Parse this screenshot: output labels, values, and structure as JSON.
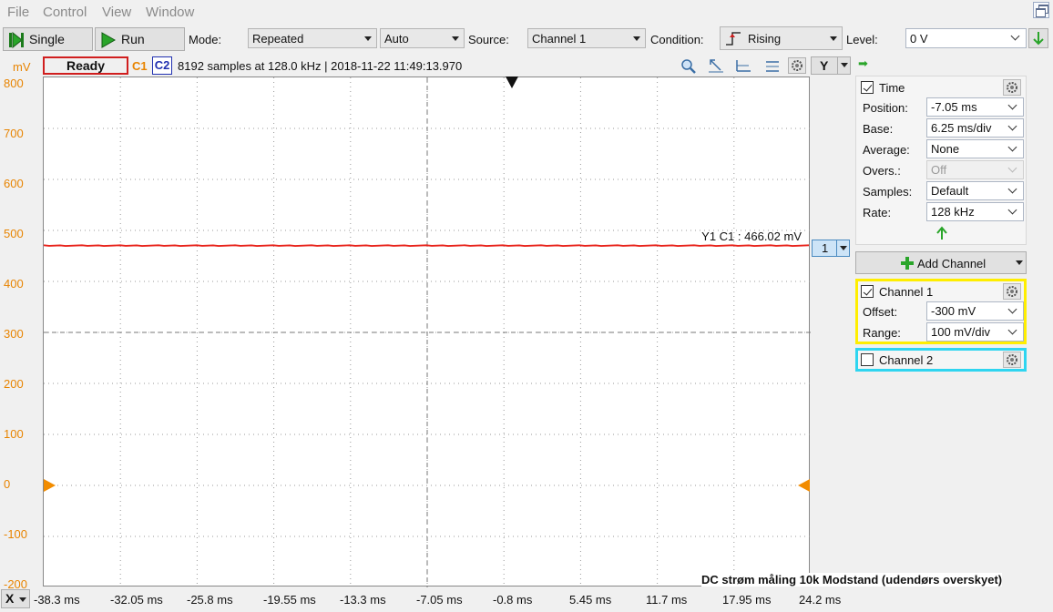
{
  "menu": [
    "File",
    "Control",
    "View",
    "Window"
  ],
  "toolbar": {
    "single_label": "Single",
    "run_label": "Run",
    "mode_label": "Mode:",
    "mode_value": "Repeated",
    "trigger_mode_value": "Auto",
    "source_label": "Source:",
    "source_value": "Channel 1",
    "condition_label": "Condition:",
    "condition_value": "Rising",
    "level_label": "Level:",
    "level_value": "0 V"
  },
  "status": {
    "state": "Ready",
    "c1": "C1",
    "c2": "C2",
    "info": "8192 samples at 128.0 kHz | 2018-11-22 11:49:13.970",
    "y_selector": "Y"
  },
  "plot": {
    "y_unit": "mV",
    "y_ticks": [
      "800",
      "700",
      "600",
      "500",
      "400",
      "300",
      "200",
      "100",
      "0",
      "-100",
      "-200"
    ],
    "x_ticks": [
      "-38.3 ms",
      "-32.05 ms",
      "-25.8 ms",
      "-19.55 ms",
      "-13.3 ms",
      "-7.05 ms",
      "-0.8 ms",
      "5.45 ms",
      "11.7 ms",
      "17.95 ms",
      "24.2 ms"
    ],
    "x_button": "X",
    "y1_readout": "Y1 C1 : 466.02 mV",
    "channel_selector": "1",
    "watermark": "DC strøm måling 10k Modstand (udendørs overskyet)",
    "trace_color": "#e8221a",
    "trace_level_mv": 466.02,
    "y_range": [
      -200,
      800
    ]
  },
  "panel": {
    "time": {
      "title": "Time",
      "position_label": "Position:",
      "position_value": "-7.05 ms",
      "base_label": "Base:",
      "base_value": "6.25 ms/div",
      "average_label": "Average:",
      "average_value": "None",
      "overs_label": "Overs.:",
      "overs_value": "Off",
      "samples_label": "Samples:",
      "samples_value": "Default",
      "rate_label": "Rate:",
      "rate_value": "128 kHz"
    },
    "add_channel": "Add Channel",
    "channel1": {
      "title": "Channel 1",
      "offset_label": "Offset:",
      "offset_value": "-300 mV",
      "range_label": "Range:",
      "range_value": "100 mV/div",
      "border_color": "#ffee00"
    },
    "channel2": {
      "title": "Channel 2",
      "border_color": "#2fd5f0"
    }
  }
}
